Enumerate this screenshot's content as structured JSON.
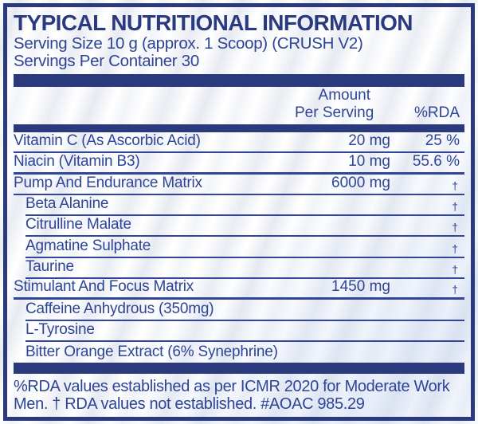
{
  "title": "TYPICAL NUTRITIONAL INFORMATION",
  "serving_size": "Serving Size 10 g (approx. 1 Scoop) (CRUSH V2)",
  "servings_per_container": "Servings Per Container 30",
  "header": {
    "amount_line1": "Amount",
    "amount_line2": "Per Serving",
    "rda": "%RDA"
  },
  "rows": [
    {
      "name": "Vitamin C (As Ascorbic Acid)",
      "amount": "20 mg",
      "rda": "25 %",
      "indent": false,
      "heavy": false
    },
    {
      "name": "Niacin (Vitamin B3)",
      "amount": "10 mg",
      "rda": "55.6 %",
      "indent": false,
      "heavy": true
    },
    {
      "name": "Pump And Endurance Matrix",
      "amount": "6000 mg",
      "rda": "†",
      "indent": false,
      "heavy": false
    },
    {
      "name": "Beta Alanine",
      "amount": "",
      "rda": "†",
      "indent": true,
      "heavy": false
    },
    {
      "name": "Citrulline Malate",
      "amount": "",
      "rda": "†",
      "indent": true,
      "heavy": false
    },
    {
      "name": "Agmatine Sulphate",
      "amount": "",
      "rda": "†",
      "indent": true,
      "heavy": false
    },
    {
      "name": "Taurine",
      "amount": "",
      "rda": "†",
      "indent": true,
      "heavy": false
    },
    {
      "name": "Stimulant And Focus Matrix",
      "amount": "1450 mg",
      "rda": "†",
      "indent": false,
      "heavy": true
    },
    {
      "name": "Caffeine Anhydrous (350mg)",
      "amount": "",
      "rda": "",
      "indent": true,
      "heavy": false
    },
    {
      "name": "L-Tyrosine",
      "amount": "",
      "rda": "",
      "indent": true,
      "heavy": false
    },
    {
      "name": "Bitter Orange Extract (6% Synephrine)",
      "amount": "",
      "rda": "",
      "indent": true,
      "heavy": false,
      "no_rule": true
    }
  ],
  "footnote": {
    "line1": "%RDA values established as per ICMR 2020 for Moderate Work",
    "line2": "Men. † RDA values not established. #AOAC 985.29"
  },
  "colors": {
    "navy": "#2b3a7c",
    "text": "#2e4497",
    "rule": "#31459b"
  }
}
